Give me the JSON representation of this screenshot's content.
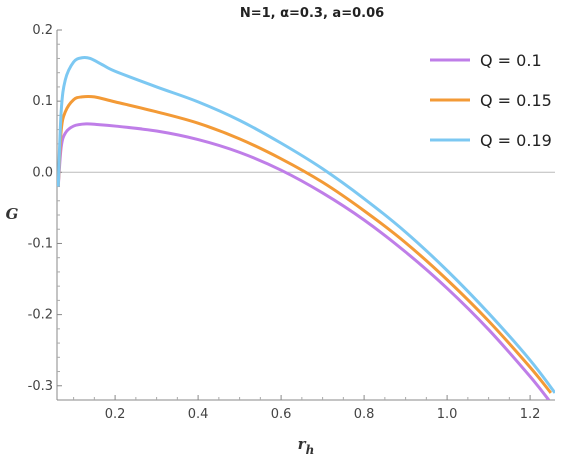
{
  "chart_data": {
    "type": "line",
    "title": "N=1, α=0.3, a=0.06",
    "xlabel": "r",
    "xlabel_subscript": "h",
    "ylabel": "G",
    "xlim": [
      0.06,
      1.26
    ],
    "ylim": [
      -0.32,
      0.2
    ],
    "x_ticks": [
      0.2,
      0.4,
      0.6,
      0.8,
      1.0,
      1.2
    ],
    "x_tick_labels": [
      "0.2",
      "0.4",
      "0.6",
      "0.8",
      "1.0",
      "1.2"
    ],
    "y_ticks": [
      -0.3,
      -0.2,
      -0.1,
      0.0,
      0.1,
      0.2
    ],
    "y_tick_labels": [
      "-0.3",
      "-0.2",
      "-0.1",
      "0.0",
      "0.1",
      "0.2"
    ],
    "zero_line": true,
    "grid": false,
    "legend_position": "top-right",
    "series": [
      {
        "name": "Q = 0.1",
        "color": "#bf7ee8",
        "x": [
          0.063,
          0.07,
          0.08,
          0.1,
          0.13,
          0.16,
          0.2,
          0.3,
          0.4,
          0.5,
          0.6,
          0.7,
          0.8,
          0.9,
          1.0,
          1.1,
          1.2,
          1.245
        ],
        "y": [
          -0.02,
          0.035,
          0.055,
          0.065,
          0.068,
          0.067,
          0.065,
          0.058,
          0.046,
          0.028,
          0.003,
          -0.029,
          -0.067,
          -0.112,
          -0.163,
          -0.221,
          -0.287,
          -0.32
        ]
      },
      {
        "name": "Q = 0.15",
        "color": "#f39a36",
        "x": [
          0.063,
          0.07,
          0.08,
          0.1,
          0.12,
          0.15,
          0.2,
          0.3,
          0.4,
          0.5,
          0.6,
          0.7,
          0.8,
          0.9,
          1.0,
          1.1,
          1.2,
          1.25
        ],
        "y": [
          -0.02,
          0.058,
          0.085,
          0.102,
          0.106,
          0.106,
          0.099,
          0.085,
          0.069,
          0.047,
          0.019,
          -0.014,
          -0.054,
          -0.099,
          -0.151,
          -0.209,
          -0.274,
          -0.31
        ]
      },
      {
        "name": "Q = 0.19",
        "color": "#7cc8f2",
        "x": [
          0.063,
          0.07,
          0.08,
          0.1,
          0.12,
          0.14,
          0.17,
          0.2,
          0.3,
          0.4,
          0.5,
          0.6,
          0.7,
          0.8,
          0.9,
          1.0,
          1.1,
          1.2,
          1.26
        ],
        "y": [
          -0.02,
          0.085,
          0.13,
          0.155,
          0.161,
          0.16,
          0.151,
          0.142,
          0.12,
          0.099,
          0.073,
          0.041,
          0.005,
          -0.037,
          -0.084,
          -0.138,
          -0.198,
          -0.264,
          -0.31
        ]
      }
    ]
  }
}
